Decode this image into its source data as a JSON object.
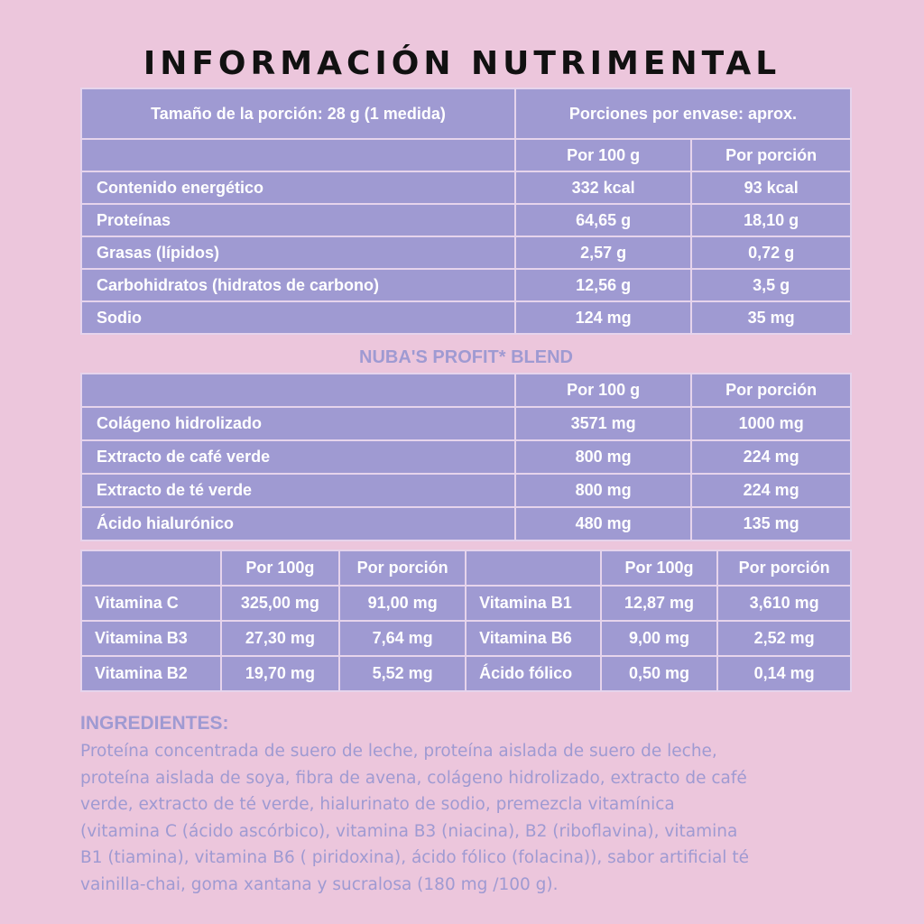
{
  "title": "INFORMACIÓN NUTRIMENTAL",
  "serving": {
    "size": "Tamaño de la porción: 28 g (1 medida)",
    "per_package": "Porciones por envase: aprox."
  },
  "nutrition": {
    "col_100g": "Por 100 g",
    "col_portion": "Por porción",
    "rows": [
      {
        "name": "Contenido energético",
        "per100": "332 kcal",
        "portion": "93 kcal"
      },
      {
        "name": "Proteínas",
        "per100": "64,65 g",
        "portion": "18,10 g"
      },
      {
        "name": "Grasas (lípidos)",
        "per100": "2,57 g",
        "portion": "0,72 g"
      },
      {
        "name": "Carbohidratos (hidratos de carbono)",
        "per100": "12,56 g",
        "portion": "3,5 g"
      },
      {
        "name": "Sodio",
        "per100": "124 mg",
        "portion": "35 mg"
      }
    ]
  },
  "blend": {
    "title": "NUBA'S PROFIT* BLEND",
    "col_100g": "Por 100 g",
    "col_portion": "Por porción",
    "rows": [
      {
        "name": "Colágeno hidrolizado",
        "per100": "3571 mg",
        "portion": "1000 mg"
      },
      {
        "name": "Extracto de café verde",
        "per100": "800 mg",
        "portion": "224 mg"
      },
      {
        "name": "Extracto de té verde",
        "per100": "800 mg",
        "portion": "224 mg"
      },
      {
        "name": "Ácido hialurónico",
        "per100": "480 mg",
        "portion": "135 mg"
      }
    ]
  },
  "vitamins": {
    "col_100g": "Por 100g",
    "col_portion": "Por porción",
    "rows": [
      {
        "left": {
          "name": "Vitamina C",
          "per100": "325,00 mg",
          "portion": "91,00 mg"
        },
        "right": {
          "name": "Vitamina B1",
          "per100": "12,87 mg",
          "portion": "3,610 mg"
        }
      },
      {
        "left": {
          "name": "Vitamina B3",
          "per100": "27,30 mg",
          "portion": "7,64 mg"
        },
        "right": {
          "name": "Vitamina B6",
          "per100": "9,00 mg",
          "portion": "2,52 mg"
        }
      },
      {
        "left": {
          "name": "Vitamina B2",
          "per100": "19,70 mg",
          "portion": "5,52 mg"
        },
        "right": {
          "name": "Ácido fólico",
          "per100": "0,50 mg",
          "portion": "0,14 mg"
        }
      }
    ]
  },
  "ingredients": {
    "title": "INGREDIENTES:",
    "lines": [
      "Proteína concentrada de suero de leche, proteína aislada de suero de leche,",
      "proteína aislada de soya, fibra de avena, colágeno hidrolizado, extracto de café",
      "verde, extracto de té verde, hialurinato de sodio, premezcla vitamínica",
      "(vitamina C (ácido ascórbico), vitamina B3 (niacina), B2 (riboflavina), vitamina",
      "B1 (tiamina), vitamina B6 ( piridoxina), ácido fólico (folacina)), sabor artificial té",
      "vainilla-chai, goma xantana y sucralosa (180 mg /100 g)."
    ]
  }
}
